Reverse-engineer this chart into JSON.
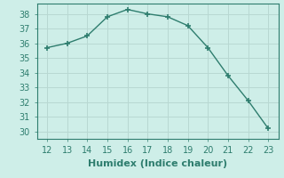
{
  "x": [
    12,
    13,
    14,
    15,
    16,
    17,
    18,
    19,
    20,
    21,
    22,
    23
  ],
  "y": [
    35.7,
    36.0,
    36.5,
    37.8,
    38.3,
    38.0,
    37.8,
    37.2,
    35.7,
    33.8,
    32.1,
    30.2
  ],
  "line_color": "#2e7d6e",
  "marker": "+",
  "xlabel": "Humidex (Indice chaleur)",
  "xlim": [
    11.5,
    23.5
  ],
  "ylim": [
    29.5,
    38.7
  ],
  "yticks": [
    30,
    31,
    32,
    33,
    34,
    35,
    36,
    37,
    38
  ],
  "xticks": [
    12,
    13,
    14,
    15,
    16,
    17,
    18,
    19,
    20,
    21,
    22,
    23
  ],
  "bg_color": "#ceeee8",
  "grid_color": "#b8d8d2",
  "label_color": "#2e7d6e",
  "tick_color": "#2e7d6e",
  "line_width": 1.0,
  "marker_size": 5,
  "marker_edge_width": 1.2,
  "xlabel_fontsize": 8,
  "tick_fontsize": 7
}
